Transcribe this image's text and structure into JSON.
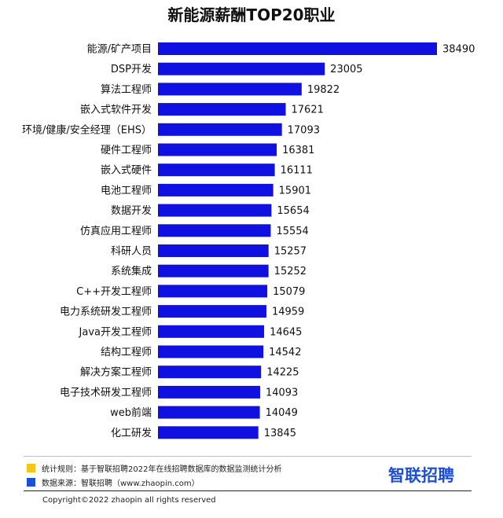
{
  "chart_data": {
    "type": "bar",
    "orientation": "horizontal",
    "title": "新能源薪酬TOP20职业",
    "categories": [
      "能源/矿产项目",
      "DSP开发",
      "算法工程师",
      "嵌入式软件开发",
      "环境/健康/安全经理（EHS）",
      "硬件工程师",
      "嵌入式硬件",
      "电池工程师",
      "数据开发",
      "仿真应用工程师",
      "科研人员",
      "系统集成",
      "C++开发工程师",
      "电力系统研发工程师",
      "Java开发工程师",
      "结构工程师",
      "解决方案工程师",
      "电子技术研发工程师",
      "web前端",
      "化工研发"
    ],
    "values": [
      38490,
      23005,
      19822,
      17621,
      17093,
      16381,
      16111,
      15901,
      15654,
      15554,
      15257,
      15252,
      15079,
      14959,
      14645,
      14542,
      14225,
      14093,
      14049,
      13845
    ],
    "bar_color": "#1010e0",
    "xlim": [
      0,
      38490
    ],
    "grid": false,
    "legend": "none"
  },
  "footer": {
    "note1": "统计规则：基于智联招聘2022年在线招聘数据库的数据监测统计分析",
    "note1_color": "#f5c518",
    "note2": "数据来源：智联招聘（www.zhaopin.com）",
    "note2_color": "#1d4ed8",
    "copyright": "Copyright©2022 zhaopin all rights reserved",
    "brand": "智联招聘"
  }
}
